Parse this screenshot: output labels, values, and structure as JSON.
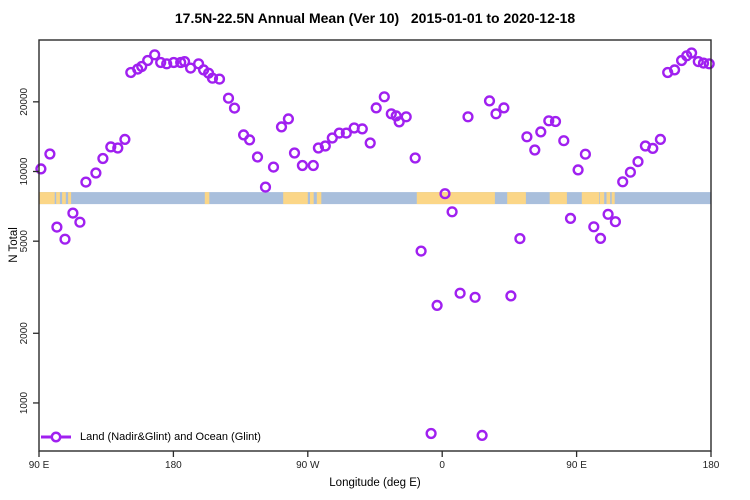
{
  "chart_data": {
    "type": "scatter",
    "title": "17.5N-22.5N Annual Mean (Ver 10)   2015-01-01 to 2020-12-18",
    "xlabel": "Longitude (deg E)",
    "ylabel": "N Total",
    "xlim": [
      90,
      540
    ],
    "ylim": [
      620,
      37000
    ],
    "y_scale": "log",
    "grid": "off",
    "x_ticks": [
      {
        "v": 90,
        "label": "90 E"
      },
      {
        "v": 180,
        "label": "180"
      },
      {
        "v": 270,
        "label": "90 W"
      },
      {
        "v": 360,
        "label": "0"
      },
      {
        "v": 450,
        "label": "90 E"
      },
      {
        "v": 540,
        "label": "180"
      }
    ],
    "y_ticks": [
      {
        "v": 1000,
        "label": "1000"
      },
      {
        "v": 2000,
        "label": "2000"
      },
      {
        "v": 5000,
        "label": "5000"
      },
      {
        "v": 10000,
        "label": "10000"
      },
      {
        "v": 20000,
        "label": "20000"
      }
    ],
    "legend": {
      "label": "Land (Nadir&Glint) and Ocean (Glint)",
      "position": "bottom-left-inside",
      "marker": "open-circle-on-line"
    },
    "colors": {
      "point": "#A020F0",
      "ocean": "#A9BFDC",
      "land": "#FBD687",
      "axis": "#2a2a2a",
      "tick_label": "#222222"
    },
    "series": [
      {
        "name": "Land (Nadir&Glint) and Ocean (Glint)",
        "marker": "open-circle",
        "color": "#A020F0",
        "points": [
          [
            91.3,
            10260
          ],
          [
            97.3,
            11900
          ],
          [
            102.0,
            5750
          ],
          [
            107.4,
            5100
          ],
          [
            112.7,
            6610
          ],
          [
            117.4,
            6040
          ],
          [
            121.4,
            9000
          ],
          [
            128.1,
            9850
          ],
          [
            132.8,
            11380
          ],
          [
            138.1,
            12770
          ],
          [
            142.8,
            12640
          ],
          [
            147.5,
            13770
          ],
          [
            151.5,
            26780
          ],
          [
            156.1,
            27690
          ],
          [
            158.8,
            28430
          ],
          [
            162.8,
            30180
          ],
          [
            167.5,
            31940
          ],
          [
            171.5,
            29570
          ],
          [
            175.5,
            29190
          ],
          [
            180.2,
            29570
          ],
          [
            184.9,
            29570
          ],
          [
            187.5,
            29860
          ],
          [
            191.5,
            27970
          ],
          [
            196.9,
            29190
          ],
          [
            200.2,
            27490
          ],
          [
            203.6,
            26600
          ],
          [
            206.2,
            25300
          ],
          [
            210.9,
            25070
          ],
          [
            216.9,
            20740
          ],
          [
            220.9,
            18790
          ],
          [
            227.0,
            14400
          ],
          [
            231.0,
            13690
          ],
          [
            236.3,
            11550
          ],
          [
            241.7,
            8560
          ],
          [
            247.0,
            10450
          ],
          [
            252.4,
            15590
          ],
          [
            257.0,
            16870
          ],
          [
            261.1,
            12020
          ],
          [
            266.4,
            10620
          ],
          [
            273.7,
            10620
          ],
          [
            277.1,
            12640
          ],
          [
            281.7,
            12890
          ],
          [
            286.4,
            13960
          ],
          [
            291.1,
            14660
          ],
          [
            295.8,
            14660
          ],
          [
            301.1,
            15420
          ],
          [
            306.5,
            15280
          ],
          [
            311.8,
            13280
          ],
          [
            315.8,
            18830
          ],
          [
            321.2,
            21020
          ],
          [
            325.9,
            17750
          ],
          [
            329.2,
            17390
          ],
          [
            331.2,
            16380
          ],
          [
            335.9,
            17230
          ],
          [
            341.9,
            11440
          ],
          [
            345.9,
            4530
          ],
          [
            352.6,
            738
          ],
          [
            356.6,
            2640
          ],
          [
            361.9,
            8020
          ],
          [
            366.6,
            6700
          ],
          [
            372.0,
            2980
          ],
          [
            377.3,
            17230
          ],
          [
            382.0,
            2860
          ],
          [
            386.7,
            724
          ],
          [
            391.7,
            20190
          ],
          [
            396.0,
            17750
          ],
          [
            401.3,
            18830
          ],
          [
            406.0,
            2900
          ],
          [
            412.0,
            5130
          ],
          [
            416.7,
            14120
          ],
          [
            422.0,
            12390
          ],
          [
            426.0,
            14830
          ],
          [
            431.4,
            16560
          ],
          [
            435.9,
            16450
          ],
          [
            441.4,
            13580
          ],
          [
            445.9,
            6270
          ],
          [
            451.0,
            10160
          ],
          [
            455.9,
            11880
          ],
          [
            461.5,
            5770
          ],
          [
            466.0,
            5140
          ],
          [
            471.1,
            6530
          ],
          [
            476.0,
            6070
          ],
          [
            480.9,
            9030
          ],
          [
            486.0,
            9930
          ],
          [
            491.1,
            11040
          ],
          [
            496.1,
            12890
          ],
          [
            501.0,
            12590
          ],
          [
            506.1,
            13770
          ],
          [
            511.0,
            26780
          ],
          [
            515.6,
            27490
          ],
          [
            520.3,
            30180
          ],
          [
            523.7,
            31620
          ],
          [
            527.0,
            32510
          ],
          [
            531.5,
            29860
          ],
          [
            535.0,
            29390
          ],
          [
            538.8,
            29190
          ]
        ]
      }
    ],
    "map_strip": {
      "description": "coastline strip for latitude band 17.5N-22.5N",
      "value_band": [
        7230,
        8150
      ],
      "ocean_color": "#A9BFDC",
      "land_color": "#FBD687",
      "land_segments_lon": [
        [
          90,
          100.5
        ],
        [
          101.5,
          104
        ],
        [
          105.5,
          108
        ],
        [
          109.5,
          111.5
        ],
        [
          201,
          204
        ],
        [
          253.5,
          270
        ],
        [
          271.5,
          274
        ],
        [
          276,
          279
        ],
        [
          343,
          395.3
        ],
        [
          403.5,
          416
        ],
        [
          432,
          443.5
        ],
        [
          453.5,
          465
        ],
        [
          465.5,
          468.5
        ],
        [
          470,
          472.5
        ],
        [
          473.5,
          475.5
        ]
      ]
    }
  }
}
